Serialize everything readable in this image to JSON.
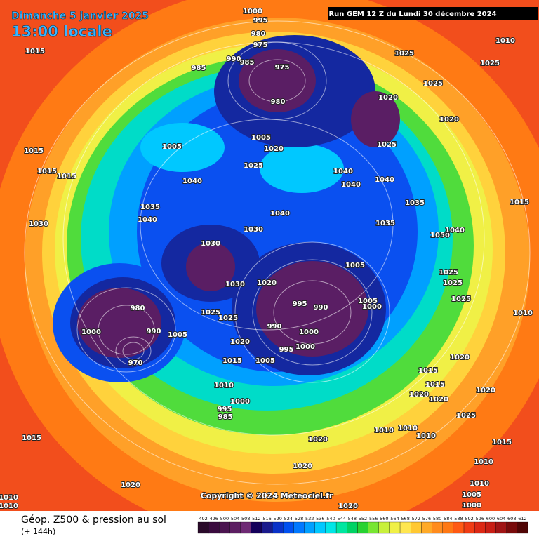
{
  "header": {
    "date": "Dimanche 5 janvier 2025",
    "time": "13:00 locale",
    "run": "Run GEM 12 Z du Lundi 30 décembre 2024"
  },
  "map": {
    "copyright": "Copyright © 2024 Meteociel.fr",
    "pressure_labels": [
      1000,
      995,
      980,
      975,
      1015,
      990,
      985,
      985,
      975,
      980,
      1025,
      1010,
      1025,
      1025,
      1020,
      1020,
      1025,
      1005,
      1020,
      1005,
      1015,
      1015,
      1015,
      1025,
      1040,
      1040,
      1040,
      1040,
      1035,
      1040,
      1040,
      1035,
      1035,
      1030,
      1030,
      1030,
      1030,
      1020,
      1050,
      1040,
      1015,
      1005,
      1025,
      1025,
      995,
      990,
      1005,
      1000,
      1025,
      1010,
      980,
      990,
      1000,
      1025,
      1025,
      1005,
      1020,
      990,
      1000,
      1000,
      995,
      1005,
      1015,
      970,
      1010,
      1000,
      995,
      985,
      1015,
      1020,
      1020,
      1015,
      1020,
      1020,
      1025,
      1010,
      1010,
      1010,
      1015,
      1020,
      1020,
      1010,
      1015,
      1020,
      1010,
      1005,
      1010,
      1010,
      1000,
      1020
    ]
  },
  "legend": {
    "title": "Géop. Z500 & pression au sol",
    "lead": "(+ 144h)",
    "levels": [
      492,
      496,
      500,
      504,
      508,
      512,
      516,
      520,
      524,
      528,
      532,
      536,
      540,
      544,
      548,
      552,
      556,
      560,
      564,
      568,
      572,
      576,
      580,
      584,
      588,
      592,
      596,
      600,
      604,
      608,
      612
    ],
    "colors": [
      "#2a0a2a",
      "#3a0b3e",
      "#4b1450",
      "#5c1e62",
      "#6e2a74",
      "#14005a",
      "#1a1a8c",
      "#0a32c8",
      "#0050f0",
      "#0078ff",
      "#00a0ff",
      "#00c8ff",
      "#00e6e6",
      "#00e6a0",
      "#00d264",
      "#28d232",
      "#78e632",
      "#c8f03c",
      "#f0f046",
      "#ffe650",
      "#ffc832",
      "#ffaa28",
      "#ff8c1e",
      "#ff7814",
      "#ff5a14",
      "#f03c14",
      "#dc2814",
      "#c81e14",
      "#a01414",
      "#780a0a",
      "#500505"
    ]
  }
}
